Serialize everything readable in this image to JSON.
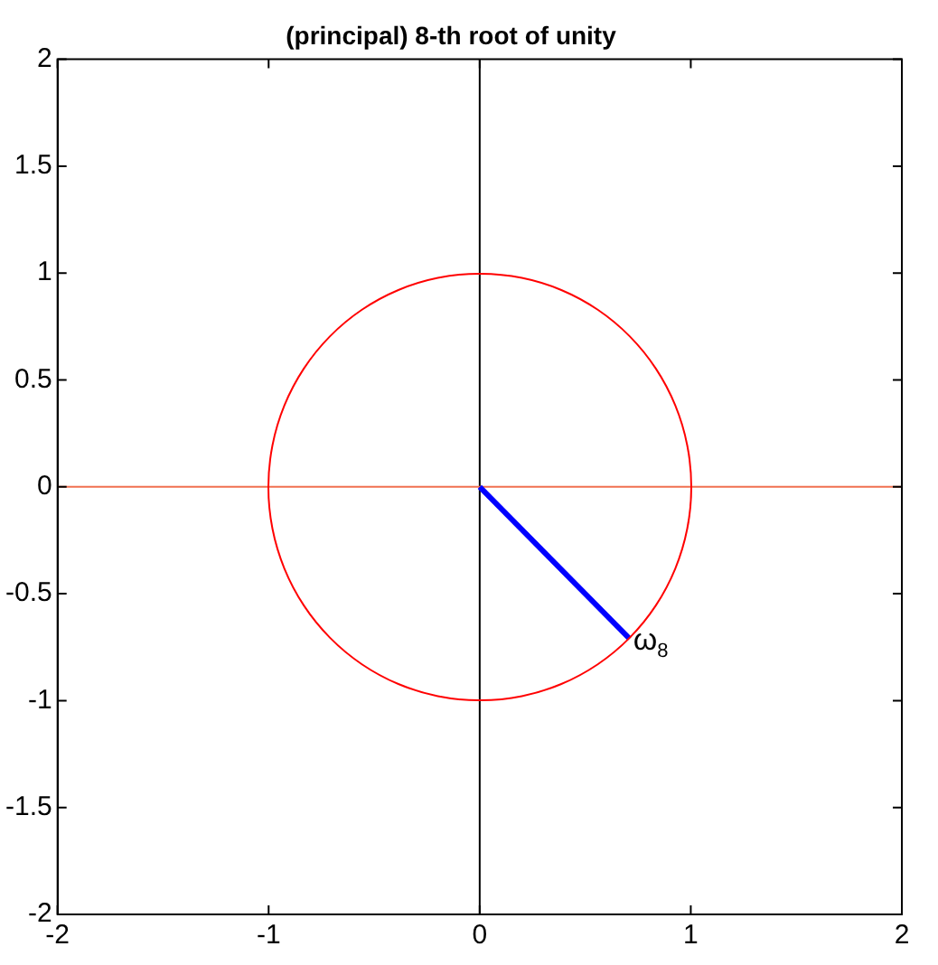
{
  "chart_data": {
    "type": "line",
    "title": "(principal) 8-th root of unity",
    "xlim": [
      -2,
      2
    ],
    "ylim": [
      -2,
      2
    ],
    "xticks": [
      -2,
      -1,
      0,
      1,
      2
    ],
    "yticks": [
      -2,
      -1.5,
      -1,
      -0.5,
      0,
      0.5,
      1,
      1.5,
      2
    ],
    "grid": false,
    "legend": false,
    "marker": "none",
    "line_style": "solid",
    "series": [
      {
        "color": "#0000ff",
        "x": [
          0,
          0.71
        ],
        "values": [
          0,
          -0.71
        ]
      }
    ],
    "ref_lines": [
      {
        "axis": "x",
        "value": 0,
        "color": "#000000"
      },
      {
        "axis": "y",
        "value": 0,
        "color": "#f07050"
      }
    ],
    "annotations": [
      {
        "text": "ω$_{8}$",
        "x": 0.71,
        "y": -0.71
      }
    ]
  }
}
